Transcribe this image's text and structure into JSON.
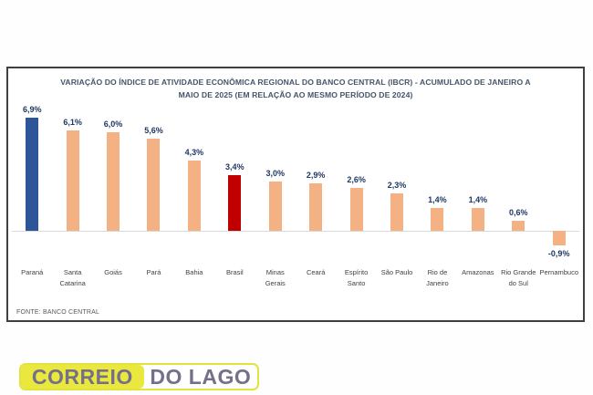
{
  "chart": {
    "title_line1": "VARIAÇÃO DO ÍNDICE DE ATIVIDADE ECONÔMICA REGIONAL DO BANCO CENTRAL (IBCR) - ACUMULADO DE JANEIRO A",
    "title_line2": "MAIO DE 2025 (EM RELAÇÃO AO MESMO PERÍODO DE 2024)",
    "source": "FONTE: BANCO CENTRAL"
  },
  "chart_data": {
    "type": "bar",
    "title": "VARIAÇÃO DO ÍNDICE DE ATIVIDADE ECONÔMICA REGIONAL DO BANCO CENTRAL (IBCR) - ACUMULADO DE JANEIRO A MAIO DE 2025 (EM RELAÇÃO AO MESMO PERÍODO DE 2024)",
    "categories": [
      "Paraná",
      "Santa Catarina",
      "Goiás",
      "Pará",
      "Bahia",
      "Brasil",
      "Minas Gerais",
      "Ceará",
      "Espírito Santo",
      "São Paulo",
      "Rio de Janeiro",
      "Amazonas",
      "Rio Grande do Sul",
      "Pernambuco"
    ],
    "values": [
      6.9,
      6.1,
      6.0,
      5.6,
      4.3,
      3.4,
      3.0,
      2.9,
      2.6,
      2.3,
      1.4,
      1.4,
      0.6,
      -0.9
    ],
    "value_labels": [
      "6,9%",
      "6,1%",
      "6,0%",
      "5,6%",
      "4,3%",
      "3,4%",
      "3,0%",
      "2,9%",
      "2,6%",
      "2,3%",
      "1,4%",
      "1,4%",
      "0,6%",
      "-0,9%"
    ],
    "bar_colors": [
      "#2E5597",
      "#F4B183",
      "#F4B183",
      "#F4B183",
      "#F4B183",
      "#C00000",
      "#F4B183",
      "#F4B183",
      "#F4B183",
      "#F4B183",
      "#F4B183",
      "#F4B183",
      "#F4B183",
      "#F4B183"
    ],
    "xlabel": "",
    "ylabel": "",
    "ylim": [
      -1.5,
      7.5
    ],
    "grid": false,
    "legend_position": "none",
    "source": "FONTE: BANCO CENTRAL"
  },
  "logo": {
    "part1": "CORREIO",
    "part2": "DO LAGO",
    "colors": {
      "yellow": "#EAE83F",
      "text": "#75708A",
      "border": "#E4E23C"
    }
  },
  "colors": {
    "title": "#44546A",
    "value_label": "#1F3864",
    "category_label": "#3F3F3F",
    "axis_line": "#D9D9D9",
    "card_border": "#3F3F3F"
  }
}
